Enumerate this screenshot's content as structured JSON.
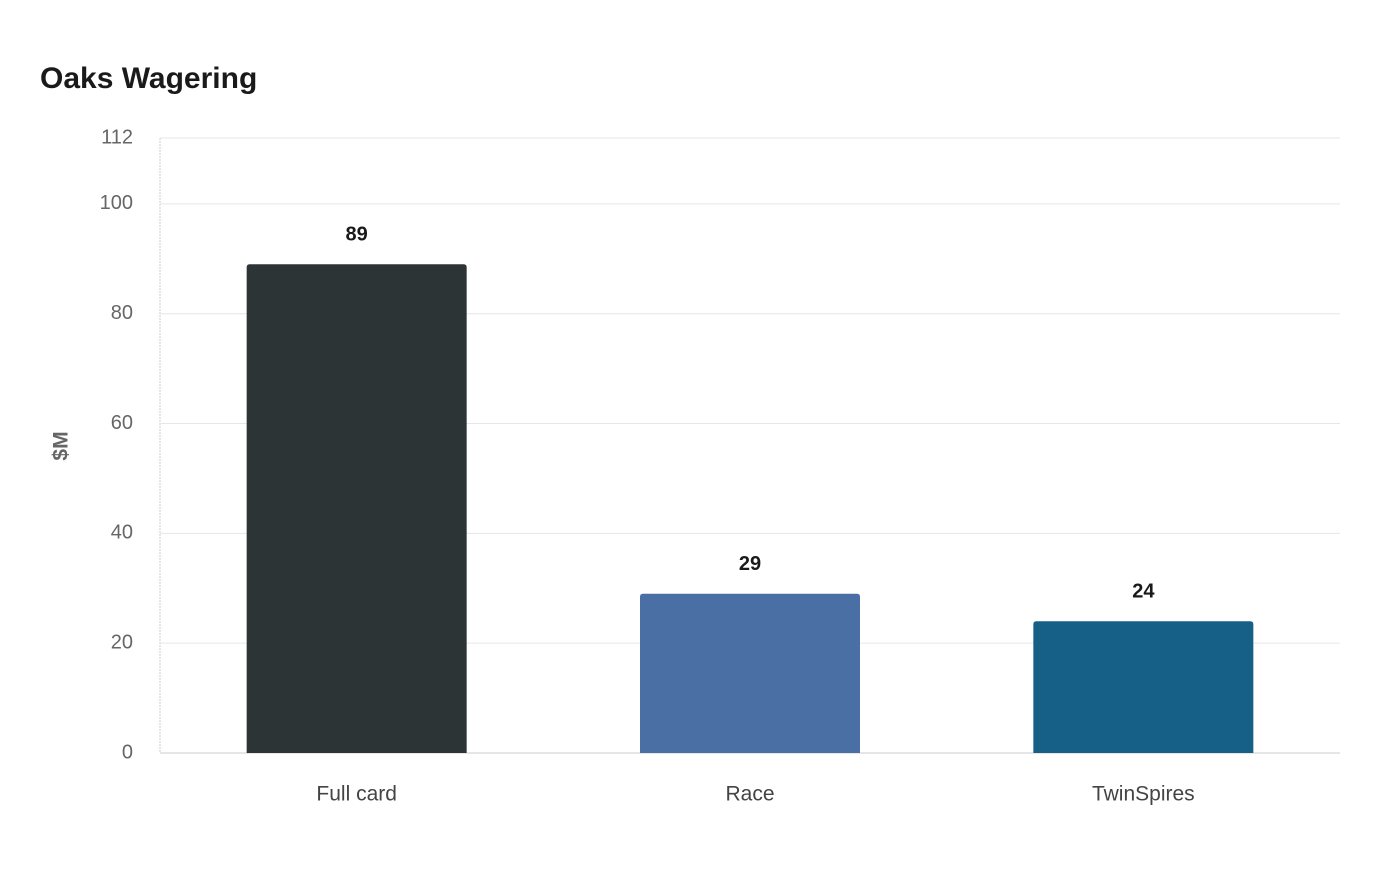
{
  "chart_data": {
    "type": "bar",
    "title": "Oaks Wagering",
    "y_label": "$M",
    "categories": [
      "Full card",
      "Race",
      "TwinSpires"
    ],
    "values": [
      89,
      29,
      24
    ],
    "colors": [
      "#2d3436",
      "#4a6fa5",
      "#166088"
    ],
    "ylim": [
      0,
      112
    ],
    "yticks": [
      0,
      20,
      40,
      60,
      80,
      100,
      112
    ],
    "grid": true
  }
}
